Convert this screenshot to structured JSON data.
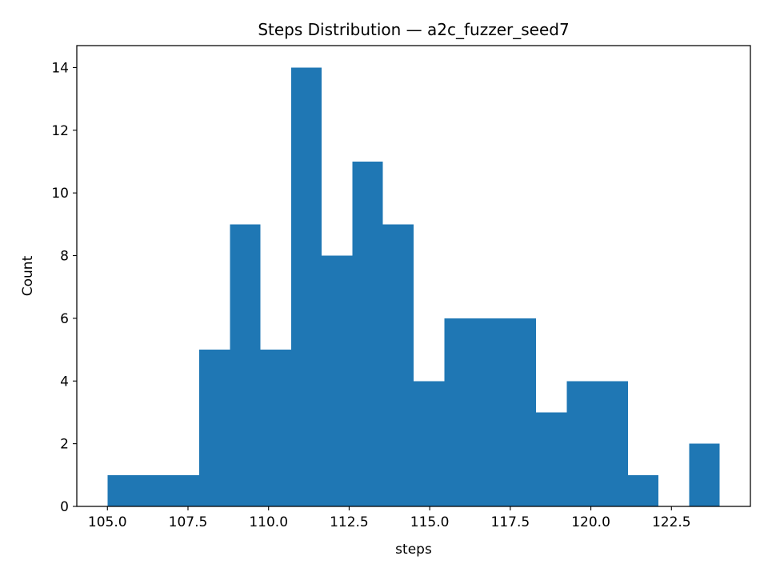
{
  "chart_data": {
    "type": "bar",
    "title": "Steps Distribution — a2c_fuzzer_seed7",
    "xlabel": "steps",
    "ylabel": "Count",
    "bin_edges": [
      105.0,
      105.95,
      106.9,
      107.85,
      108.8,
      109.75,
      110.7,
      111.65,
      112.6,
      113.55,
      114.5,
      115.45,
      116.4,
      117.35,
      118.3,
      119.25,
      120.2,
      121.15,
      122.1,
      123.05,
      124.0
    ],
    "counts": [
      1,
      1,
      1,
      5,
      9,
      5,
      14,
      8,
      11,
      9,
      4,
      6,
      6,
      6,
      3,
      4,
      4,
      1,
      0,
      2
    ],
    "xlim": [
      104.05,
      124.95
    ],
    "ylim": [
      0,
      14.7
    ],
    "x_ticks": [
      105.0,
      107.5,
      110.0,
      112.5,
      115.0,
      117.5,
      120.0,
      122.5
    ],
    "x_tick_labels": [
      "105.0",
      "107.5",
      "110.0",
      "112.5",
      "115.0",
      "117.5",
      "120.0",
      "122.5"
    ],
    "y_ticks": [
      0,
      2,
      4,
      6,
      8,
      10,
      12,
      14
    ],
    "y_tick_labels": [
      "0",
      "2",
      "4",
      "6",
      "8",
      "10",
      "12",
      "14"
    ],
    "bar_color": "#1f77b4",
    "grid": false,
    "legend": "none"
  }
}
